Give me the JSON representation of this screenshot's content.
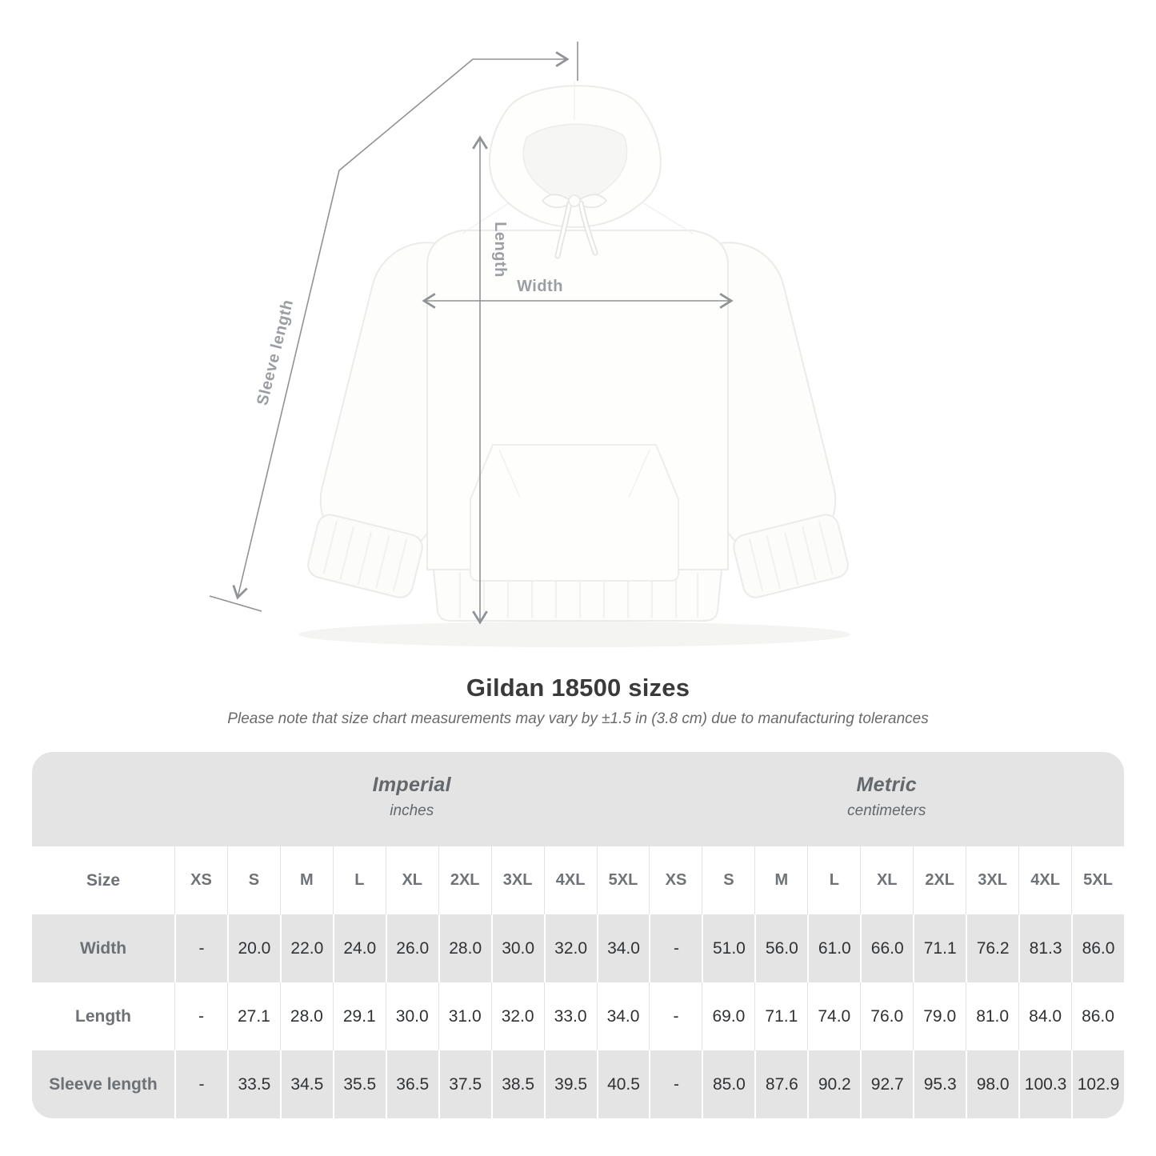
{
  "title": "Gildan 18500 sizes",
  "subtitle": "Please note that size chart measurements may vary by ±1.5 in (3.8 cm) due to manufacturing tolerances",
  "diagram": {
    "length_label": "Length",
    "width_label": "Width",
    "sleeve_label": "Sleeve length"
  },
  "table": {
    "size_header": "Size",
    "unit_groups": [
      {
        "name": "Imperial",
        "unit": "inches"
      },
      {
        "name": "Metric",
        "unit": "centimeters"
      }
    ],
    "sizes": [
      "XS",
      "S",
      "M",
      "L",
      "XL",
      "2XL",
      "3XL",
      "4XL",
      "5XL"
    ],
    "rows": [
      {
        "label": "Width",
        "imperial": [
          "-",
          "20.0",
          "22.0",
          "24.0",
          "26.0",
          "28.0",
          "30.0",
          "32.0",
          "34.0"
        ],
        "metric": [
          "-",
          "51.0",
          "56.0",
          "61.0",
          "66.0",
          "71.1",
          "76.2",
          "81.3",
          "86.0"
        ]
      },
      {
        "label": "Length",
        "imperial": [
          "-",
          "27.1",
          "28.0",
          "29.1",
          "30.0",
          "31.0",
          "32.0",
          "33.0",
          "34.0"
        ],
        "metric": [
          "-",
          "69.0",
          "71.1",
          "74.0",
          "76.0",
          "79.0",
          "81.0",
          "84.0",
          "86.0"
        ]
      },
      {
        "label": "Sleeve length",
        "imperial": [
          "-",
          "33.5",
          "34.5",
          "35.5",
          "36.5",
          "37.5",
          "38.5",
          "39.5",
          "40.5"
        ],
        "metric": [
          "-",
          "85.0",
          "87.6",
          "90.2",
          "92.7",
          "95.3",
          "98.0",
          "100.3",
          "102.9"
        ]
      }
    ]
  },
  "colors": {
    "band_gray": "#e5e4e4",
    "separator_light": "#e2e2e2",
    "separator_white": "#ffffff",
    "header_text": "#6f7377",
    "value_text": "#2f3235",
    "title_text": "#3a3a3a",
    "subtitle_text": "#6a6a6a",
    "measure_label": "#9b9ea2",
    "arrow": "#8f9296",
    "garment_outline": "#ebebe9"
  }
}
